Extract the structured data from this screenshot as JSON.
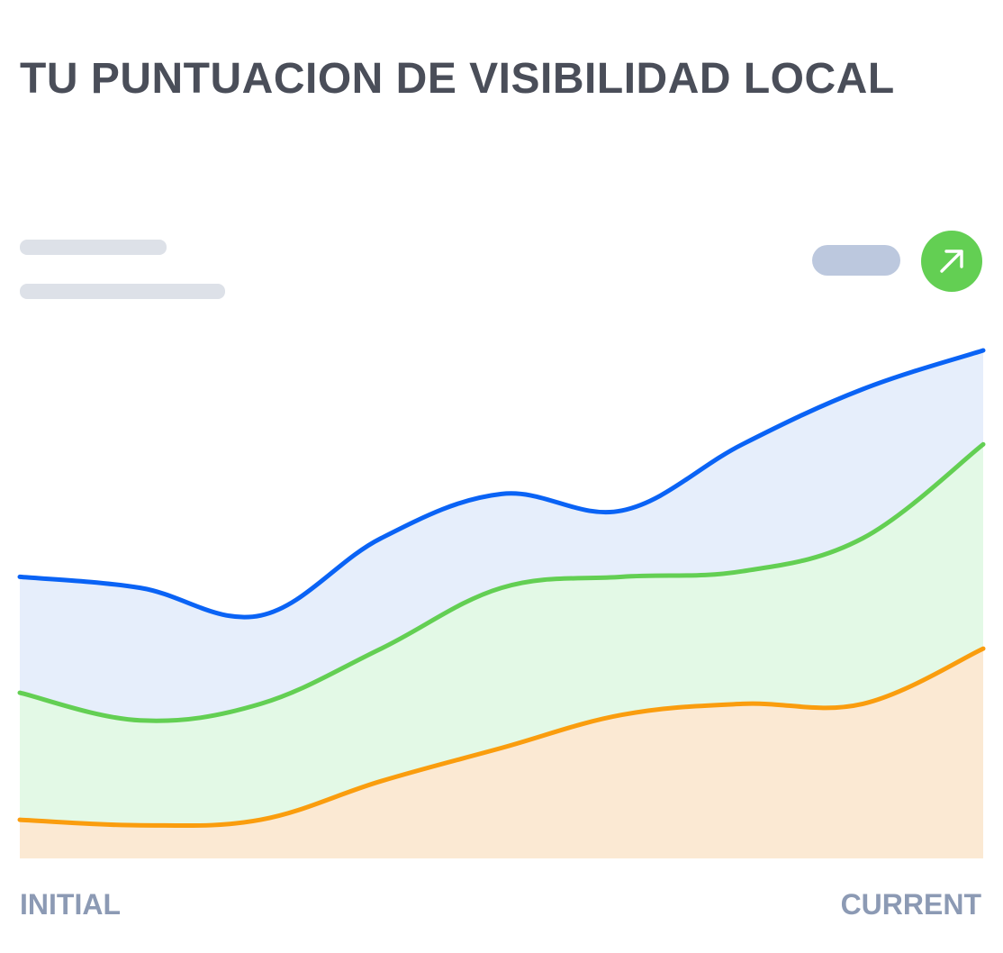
{
  "header": {
    "title": "TU PUNTUACION DE VISIBILIDAD LOCAL"
  },
  "trend_button": {
    "icon": "arrow-up-right-icon",
    "color": "#63cf53"
  },
  "chart_data": {
    "type": "area",
    "title": "TU PUNTUACION DE VISIBILIDAD LOCAL",
    "xlabel": "",
    "ylabel": "",
    "tick_labels": [
      "INITIAL",
      "CURRENT"
    ],
    "grid": false,
    "legend": "none",
    "x": [
      0,
      1,
      2,
      3,
      4,
      5,
      6,
      7,
      8
    ],
    "ylim": [
      0,
      100
    ],
    "series": [
      {
        "color": "#0a63f5",
        "fill": "#e6eefb",
        "values": [
          51,
          49,
          44,
          58,
          66,
          63,
          75,
          85,
          92
        ]
      },
      {
        "color": "#63cf53",
        "fill": "#e3f9e6",
        "values": [
          30,
          25,
          28,
          38,
          49,
          51,
          52,
          58,
          75
        ]
      },
      {
        "color": "#fa9d0e",
        "fill": "#fbe9d3",
        "values": [
          7,
          6,
          7,
          14,
          20,
          26,
          28,
          28,
          38
        ]
      }
    ]
  }
}
